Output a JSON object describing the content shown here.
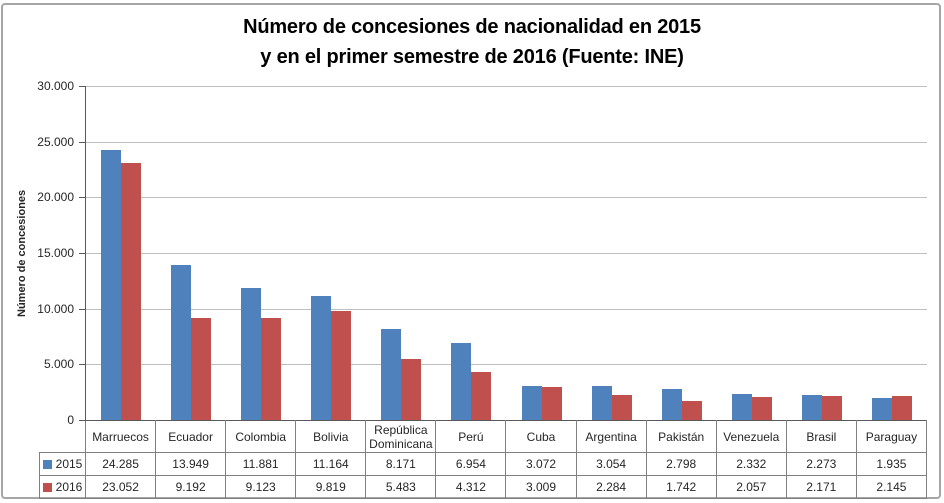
{
  "chart": {
    "title_line1": "Número de concesiones de nacionalidad en 2015",
    "title_line2": "y en el primer semestre de 2016 (Fuente: INE)"
  },
  "chart_data": {
    "type": "bar",
    "title": "Número de concesiones de nacionalidad en 2015 y en el primer semestre de 2016 (Fuente: INE)",
    "xlabel": "",
    "ylabel": "Número de concesiones",
    "ylim": [
      0,
      30000
    ],
    "yticks": [
      0,
      5000,
      10000,
      15000,
      20000,
      25000,
      30000
    ],
    "grid": true,
    "legend_position": "data-table-left",
    "number_format": "thousands-dot",
    "categories": [
      "Marruecos",
      "Ecuador",
      "Colombia",
      "Bolivia",
      "República Dominicana",
      "Perú",
      "Cuba",
      "Argentina",
      "Pakistán",
      "Venezuela",
      "Brasil",
      "Paraguay"
    ],
    "series": [
      {
        "name": "2015",
        "color": "#4F81BD",
        "values": [
          24285,
          13949,
          11881,
          11164,
          8171,
          6954,
          3072,
          3054,
          2798,
          2332,
          2273,
          1935
        ]
      },
      {
        "name": "2016",
        "color": "#C0504D",
        "values": [
          23052,
          9192,
          9123,
          9819,
          5483,
          4312,
          3009,
          2284,
          1742,
          2057,
          2171,
          2145
        ]
      }
    ]
  },
  "colors": {
    "bar_2015": "#4F81BD",
    "bar_2016": "#C0504D",
    "gridline": "#BFBFBF",
    "axis": "#595959",
    "table_border": "#808080",
    "frame_border": "#A6A6A6"
  }
}
